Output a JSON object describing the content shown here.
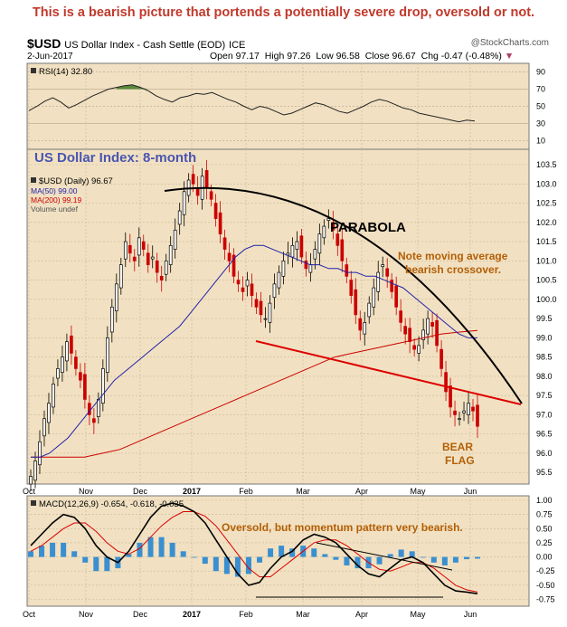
{
  "headline": "This is a bearish picture that portends a potentially severe drop, oversold or not.",
  "header": {
    "symbol": "$USD",
    "description": "US Dollar Index - Cash Settle (EOD)",
    "exchange": "ICE",
    "watermark": "@StockCharts.com",
    "date": "2-Jun-2017",
    "open_label": "Open",
    "open": "97.17",
    "high_label": "High",
    "high": "97.26",
    "low_label": "Low",
    "low": "96.58",
    "close_label": "Close",
    "close": "96.67",
    "chg_label": "Chg",
    "chg": "-0.47 (-0.48%)"
  },
  "colors": {
    "panel_bg": "#f1e1c2",
    "ma50": "#2222aa",
    "ma200": "#cc0000",
    "annotation": "#b45f06",
    "trendline": "#dd0000",
    "parabola": "#000000",
    "rsi_fill": "#5b8a3a",
    "macd_hist": "#3a8fd0",
    "signal": "#dd0000"
  },
  "chart_data": [
    {
      "type": "line",
      "panel": "rsi",
      "title": "RSI(14) 32.80",
      "ylim": [
        0,
        100
      ],
      "yticks": [
        90,
        70,
        50,
        30,
        10
      ],
      "series": [
        {
          "name": "RSI(14)",
          "values": [
            45,
            50,
            56,
            60,
            55,
            48,
            52,
            57,
            62,
            66,
            70,
            72,
            74,
            75,
            72,
            68,
            62,
            58,
            55,
            60,
            62,
            65,
            64,
            66,
            62,
            58,
            55,
            50,
            46,
            50,
            48,
            44,
            40,
            42,
            46,
            50,
            54,
            52,
            48,
            44,
            42,
            46,
            50,
            55,
            58,
            56,
            52,
            48,
            46,
            42,
            40,
            38,
            36,
            34,
            32,
            34,
            33
          ]
        }
      ]
    },
    {
      "type": "candlestick",
      "panel": "price",
      "title": "$USD (Daily) 96.67",
      "ylim": [
        95.2,
        103.9
      ],
      "yticks": [
        95.5,
        96.0,
        96.5,
        97.0,
        97.5,
        98.0,
        98.5,
        99.0,
        99.5,
        100.0,
        100.5,
        101.0,
        101.5,
        102.0,
        102.5,
        103.0,
        103.5
      ],
      "xticks": [
        "Oct",
        "Nov",
        "Dec",
        "2017",
        "Feb",
        "Mar",
        "Apr",
        "May",
        "Jun"
      ],
      "legend": [
        "$USD (Daily) 96.67",
        "MA(50) 99.00",
        "MA(200) 99.19",
        "Volume undef"
      ],
      "close": [
        95.4,
        95.8,
        96.3,
        96.9,
        97.3,
        97.8,
        98.2,
        98.5,
        98.9,
        98.6,
        98.2,
        97.9,
        97.4,
        97.0,
        96.8,
        97.4,
        98.2,
        99.0,
        99.8,
        100.4,
        100.9,
        101.5,
        101.2,
        101.0,
        101.6,
        101.3,
        100.9,
        101.1,
        100.7,
        100.5,
        101.0,
        101.4,
        101.8,
        102.3,
        102.8,
        103.1,
        103.0,
        102.7,
        103.2,
        102.9,
        102.6,
        102.1,
        101.7,
        101.3,
        101.0,
        100.6,
        100.4,
        100.2,
        100.5,
        100.1,
        99.8,
        99.6,
        99.5,
        99.9,
        100.4,
        100.7,
        101.0,
        101.2,
        101.4,
        101.5,
        101.1,
        100.8,
        100.9,
        101.3,
        101.7,
        101.9,
        102.1,
        101.8,
        101.4,
        101.0,
        100.6,
        100.1,
        99.6,
        99.2,
        99.4,
        99.9,
        100.3,
        100.7,
        100.9,
        100.6,
        100.2,
        99.8,
        99.4,
        99.1,
        98.9,
        98.7,
        98.8,
        99.2,
        99.5,
        99.3,
        98.8,
        98.2,
        97.6,
        97.2,
        97.0,
        96.9,
        97.1,
        97.3,
        97.1,
        96.7
      ],
      "ma50": [
        95.9,
        95.9,
        96.0,
        96.2,
        96.4,
        96.7,
        97.0,
        97.3,
        97.6,
        97.9,
        98.1,
        98.3,
        98.5,
        98.7,
        98.9,
        99.1,
        99.3,
        99.6,
        99.9,
        100.2,
        100.5,
        100.8,
        101.1,
        101.3,
        101.4,
        101.4,
        101.3,
        101.2,
        101.1,
        101.0,
        100.9,
        100.9,
        100.8,
        100.8,
        100.7,
        100.7,
        100.6,
        100.6,
        100.5,
        100.4,
        100.3,
        100.1,
        99.9,
        99.7,
        99.5,
        99.3,
        99.1,
        99.0,
        99.0
      ],
      "ma200": [
        95.9,
        95.9,
        95.9,
        95.9,
        96.0,
        96.1,
        96.3,
        96.5,
        96.7,
        96.9,
        97.1,
        97.3,
        97.5,
        97.7,
        97.9,
        98.1,
        98.3,
        98.5,
        98.6,
        98.7,
        98.8,
        98.9,
        99.0,
        99.1,
        99.15,
        99.19
      ]
    },
    {
      "type": "line",
      "panel": "macd",
      "title": "MACD(12,26,9) -0.654, -0.618, -0.035",
      "ylim": [
        -0.87,
        1.08
      ],
      "yticks": [
        1.0,
        0.75,
        0.5,
        0.25,
        0.0,
        -0.25,
        -0.5,
        -0.75
      ],
      "series": [
        {
          "name": "MACD(12,26,9)",
          "values": [
            0.2,
            0.4,
            0.6,
            0.75,
            0.7,
            0.5,
            0.2,
            0.0,
            -0.1,
            0.1,
            0.4,
            0.7,
            0.9,
            0.95,
            0.9,
            0.8,
            0.6,
            0.3,
            0.0,
            -0.3,
            -0.5,
            -0.45,
            -0.2,
            0.0,
            0.1,
            0.3,
            0.4,
            0.35,
            0.25,
            0.05,
            -0.15,
            -0.3,
            -0.35,
            -0.2,
            -0.05,
            0.0,
            -0.1,
            -0.3,
            -0.5,
            -0.6,
            -0.62,
            -0.65
          ]
        },
        {
          "name": "Signal",
          "values": [
            0.1,
            0.2,
            0.35,
            0.5,
            0.6,
            0.6,
            0.45,
            0.25,
            0.1,
            0.05,
            0.15,
            0.35,
            0.55,
            0.7,
            0.8,
            0.8,
            0.72,
            0.55,
            0.3,
            0.05,
            -0.2,
            -0.35,
            -0.35,
            -0.2,
            -0.05,
            0.1,
            0.25,
            0.3,
            0.3,
            0.2,
            0.05,
            -0.1,
            -0.22,
            -0.25,
            -0.18,
            -0.1,
            -0.1,
            -0.2,
            -0.35,
            -0.5,
            -0.58,
            -0.62
          ]
        }
      ]
    }
  ],
  "annotations": {
    "chart_title": "US Dollar Index: 8-month",
    "parabola": "PARABOLA",
    "ma_note_1": "Note moving average",
    "ma_note_2": "bearish crossover.",
    "bear": "BEAR",
    "flag": "FLAG",
    "macd_note": "Oversold, but momentum pattern very bearish."
  }
}
